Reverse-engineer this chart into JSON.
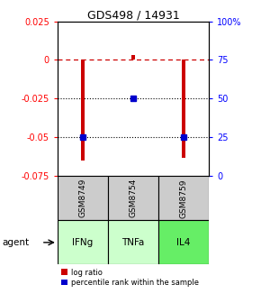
{
  "title": "GDS498 / 14931",
  "samples": [
    "GSM8749",
    "GSM8754",
    "GSM8759"
  ],
  "agents": [
    "IFNg",
    "TNFa",
    "IL4"
  ],
  "log_ratios": [
    -0.065,
    0.003,
    -0.063
  ],
  "percentile_yvals": [
    -0.05,
    -0.025,
    -0.05
  ],
  "ylim_left": [
    -0.075,
    0.025
  ],
  "ylim_right": [
    0,
    100
  ],
  "yticks_left": [
    0.025,
    0.0,
    -0.025,
    -0.05,
    -0.075
  ],
  "yticks_left_labels": [
    "0.025",
    "0",
    "-0.025",
    "-0.05",
    "-0.075"
  ],
  "yticks_right": [
    100,
    75,
    50,
    25,
    0
  ],
  "yticks_right_labels": [
    "100%",
    "75",
    "50",
    "25",
    "0"
  ],
  "bar_color": "#cc0000",
  "percentile_color": "#0000cc",
  "gsm_bg": "#cccccc",
  "agent_bg_ifng": "#ccffcc",
  "agent_bg_tnfa": "#ccffcc",
  "agent_bg_il4": "#66ee66",
  "bar_width": 0.06,
  "agent_label": "agent"
}
